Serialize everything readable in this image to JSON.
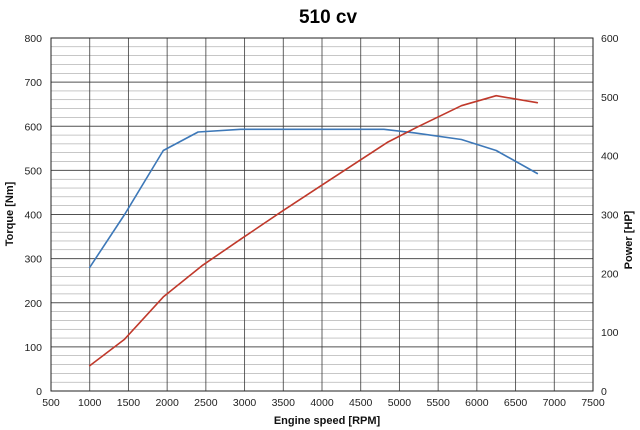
{
  "chart_data": {
    "type": "line",
    "title": "510 cv",
    "xlabel": "Engine speed [RPM]",
    "ylabel_left": "Torque [Nm]",
    "ylabel_right": "Power [HP]",
    "xlim": [
      500,
      7500
    ],
    "ylim_left": [
      0,
      800
    ],
    "ylim_right": [
      0,
      600
    ],
    "xticks": [
      "500",
      "1000",
      "1500",
      "2000",
      "2500",
      "3000",
      "3500",
      "4000",
      "4500",
      "5000",
      "5500",
      "6000",
      "6500",
      "7000",
      "7500"
    ],
    "yticks_left": [
      "0",
      "100",
      "200",
      "300",
      "400",
      "500",
      "600",
      "700",
      "800"
    ],
    "yticks_right": [
      "0",
      "100",
      "200",
      "300",
      "400",
      "500",
      "600"
    ],
    "grid": true,
    "colors": {
      "torque": "#3d78b8",
      "power": "#c0392b",
      "grid": "#333333"
    },
    "series": [
      {
        "axis": "left",
        "color": "#3d78b8",
        "x": [
          1000,
          1450,
          1950,
          2400,
          2950,
          3500,
          4000,
          4800,
          5200,
          5800,
          6250,
          6780
        ],
        "y": [
          280,
          400,
          545,
          587,
          593,
          593,
          593,
          593,
          585,
          570,
          545,
          493
        ]
      },
      {
        "axis": "right",
        "color": "#c0392b",
        "x": [
          1000,
          1450,
          1950,
          2450,
          2950,
          3500,
          4000,
          4850,
          5250,
          5800,
          6250,
          6780
        ],
        "y": [
          43,
          88,
          160,
          213,
          258,
          307,
          350,
          423,
          450,
          485,
          502,
          490
        ]
      }
    ]
  }
}
